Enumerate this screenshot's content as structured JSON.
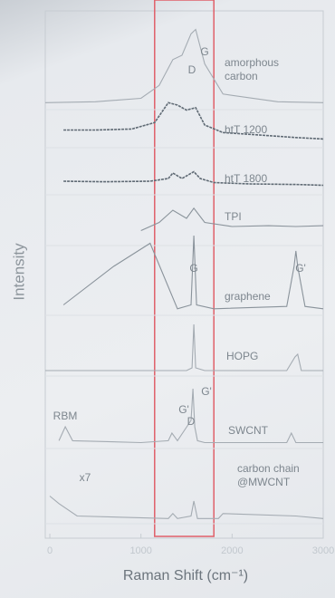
{
  "chart_data": {
    "type": "line",
    "x_label": "Raman Shift (cm⁻¹)",
    "y_label": "Intensity",
    "xlim": [
      -50,
      3000
    ],
    "xticks": [
      0,
      1000,
      2000,
      3000
    ],
    "highlight": {
      "range": [
        1150,
        1800
      ],
      "color": "#e0606a"
    },
    "annotations": [
      "D",
      "G",
      "G",
      "G'",
      "RBM",
      "D",
      "G'",
      "G'",
      "x7"
    ],
    "series": [
      {
        "name": "amorphous carbon",
        "color": "#a4abb2",
        "x": [
          -50,
          500,
          1000,
          1200,
          1350,
          1450,
          1550,
          1600,
          1700,
          1900,
          2500,
          3000
        ],
        "values": [
          0.05,
          0.06,
          0.1,
          0.25,
          0.55,
          0.6,
          0.85,
          0.9,
          0.5,
          0.15,
          0.06,
          0.05
        ]
      },
      {
        "name": "htT 1200",
        "color": "#5f6a74",
        "x": [
          150,
          500,
          900,
          1150,
          1300,
          1400,
          1500,
          1600,
          1700,
          1900,
          2300,
          2700,
          3000
        ],
        "values": [
          0.3,
          0.3,
          0.32,
          0.45,
          0.85,
          0.8,
          0.7,
          0.75,
          0.4,
          0.25,
          0.2,
          0.15,
          0.12
        ]
      },
      {
        "name": "htT 1800",
        "color": "#5f6a74",
        "x": [
          150,
          600,
          1100,
          1300,
          1350,
          1450,
          1580,
          1650,
          1800,
          2200,
          2700,
          3000
        ],
        "values": [
          0.4,
          0.38,
          0.4,
          0.5,
          0.7,
          0.5,
          0.75,
          0.5,
          0.35,
          0.3,
          0.28,
          0.25
        ]
      },
      {
        "name": "TPI",
        "color": "#8a939b",
        "x": [
          1000,
          1200,
          1350,
          1500,
          1580,
          1700,
          2000,
          2400,
          2700,
          3000
        ],
        "values": [
          0.3,
          0.5,
          0.8,
          0.6,
          0.85,
          0.5,
          0.4,
          0.42,
          0.4,
          0.42
        ]
      },
      {
        "name": "graphene",
        "color": "#8a939b",
        "x": [
          150,
          700,
          1100,
          1400,
          1550,
          1580,
          1610,
          1800,
          2600,
          2680,
          2700,
          2720,
          2800,
          3000
        ],
        "values": [
          0.1,
          0.6,
          0.9,
          0.05,
          0.1,
          1.0,
          0.1,
          0.05,
          0.08,
          0.6,
          0.8,
          0.6,
          0.08,
          0.05
        ]
      },
      {
        "name": "HOPG",
        "color": "#a4abb2",
        "x": [
          -50,
          1500,
          1560,
          1580,
          1600,
          1700,
          2600,
          2690,
          2720,
          2760,
          3000
        ],
        "values": [
          0.05,
          0.05,
          0.1,
          0.9,
          0.1,
          0.05,
          0.05,
          0.3,
          0.35,
          0.05,
          0.05
        ]
      },
      {
        "name": "SWCNT",
        "color": "#a4abb2",
        "x": [
          100,
          170,
          250,
          1000,
          1300,
          1340,
          1400,
          1550,
          1570,
          1590,
          1620,
          1700,
          2600,
          2650,
          2700,
          3000
        ],
        "values": [
          0.08,
          0.3,
          0.08,
          0.05,
          0.08,
          0.2,
          0.08,
          0.4,
          0.9,
          0.3,
          0.08,
          0.05,
          0.05,
          0.2,
          0.05,
          0.05
        ]
      },
      {
        "name": "carbon chain @MWCNT",
        "color": "#a4abb2",
        "x": [
          0,
          100,
          300,
          1300,
          1350,
          1400,
          1550,
          1580,
          1620,
          1850,
          1900,
          2700,
          3000
        ],
        "values": [
          0.5,
          0.35,
          0.1,
          0.05,
          0.15,
          0.05,
          0.1,
          0.4,
          0.05,
          0.05,
          0.15,
          0.1,
          0.05
        ]
      }
    ]
  }
}
